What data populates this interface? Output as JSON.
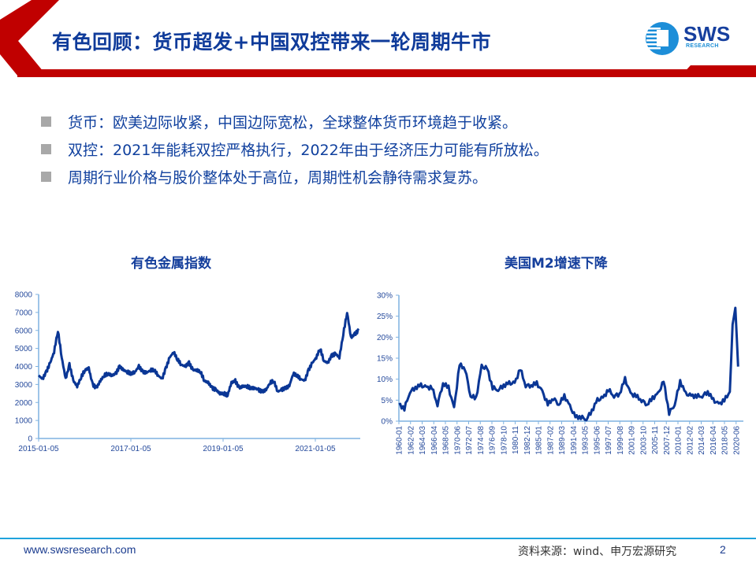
{
  "header": {
    "title": "有色回顾：货币超发+中国双控带来一轮周期牛市",
    "logo_text": "SWS",
    "logo_subtext": "RESEARCH",
    "accent_color": "#c00000",
    "title_color": "#0f3b9a"
  },
  "bullets": [
    {
      "text": "货币：欧美边际收紧，中国边际宽松，全球整体货币环境趋于收紧。"
    },
    {
      "text": "双控：2021年能耗双控严格执行，2022年由于经济压力可能有所放松。"
    },
    {
      "text": "周期行业价格与股价整体处于高位，周期性机会静待需求复苏。"
    }
  ],
  "charts": {
    "left_title": "有色金属指数",
    "right_title": "美国M2增速下降"
  },
  "chart_data": [
    {
      "type": "line",
      "title": "有色金属指数",
      "xlabel": "",
      "ylabel": "",
      "ylim": [
        0,
        8000
      ],
      "yticks": [
        "0",
        "1000",
        "2000",
        "3000",
        "4000",
        "5000",
        "6000",
        "7000",
        "8000"
      ],
      "xticks": [
        "2015-01-05",
        "2017-01-05",
        "2019-01-05",
        "2021-01-05"
      ],
      "grid": false,
      "series": [
        {
          "name": "有色金属指数",
          "color": "#0a3695",
          "x": [
            "2015-01",
            "2015-02",
            "2015-03",
            "2015-04",
            "2015-05",
            "2015-06",
            "2015-07",
            "2015-08",
            "2015-09",
            "2015-10",
            "2015-11",
            "2015-12",
            "2016-01",
            "2016-02",
            "2016-03",
            "2016-04",
            "2016-05",
            "2016-06",
            "2016-07",
            "2016-08",
            "2016-09",
            "2016-10",
            "2016-11",
            "2016-12",
            "2017-01",
            "2017-02",
            "2017-03",
            "2017-04",
            "2017-05",
            "2017-06",
            "2017-07",
            "2017-08",
            "2017-09",
            "2017-10",
            "2017-11",
            "2017-12",
            "2018-01",
            "2018-02",
            "2018-03",
            "2018-04",
            "2018-05",
            "2018-06",
            "2018-07",
            "2018-08",
            "2018-09",
            "2018-10",
            "2018-11",
            "2018-12",
            "2019-01",
            "2019-02",
            "2019-03",
            "2019-04",
            "2019-05",
            "2019-06",
            "2019-07",
            "2019-08",
            "2019-09",
            "2019-10",
            "2019-11",
            "2019-12",
            "2020-01",
            "2020-02",
            "2020-03",
            "2020-04",
            "2020-05",
            "2020-06",
            "2020-07",
            "2020-08",
            "2020-09",
            "2020-10",
            "2020-11",
            "2020-12",
            "2021-01",
            "2021-02",
            "2021-03",
            "2021-04",
            "2021-05",
            "2021-06",
            "2021-07",
            "2021-08",
            "2021-09",
            "2021-10",
            "2021-11",
            "2021-12"
          ],
          "values": [
            3500,
            3300,
            3700,
            4200,
            4800,
            6000,
            4500,
            3300,
            4100,
            3200,
            2900,
            3400,
            3800,
            3900,
            3000,
            2800,
            3200,
            3500,
            3600,
            3500,
            3600,
            4000,
            3800,
            3700,
            3600,
            3700,
            4000,
            3700,
            3650,
            3800,
            3800,
            3500,
            3300,
            3900,
            4500,
            4800,
            4400,
            4100,
            4000,
            4200,
            3800,
            3800,
            3700,
            3200,
            3100,
            2800,
            2700,
            2500,
            2500,
            2400,
            3100,
            3200,
            2800,
            2900,
            2900,
            2800,
            2800,
            2700,
            2600,
            2700,
            3100,
            3200,
            2600,
            2700,
            2800,
            2900,
            3600,
            3500,
            3300,
            3200,
            3800,
            4200,
            4500,
            5000,
            4300,
            4200,
            4600,
            4700,
            4500,
            5800,
            7000,
            5600,
            5800,
            6000
          ]
        }
      ]
    },
    {
      "type": "line",
      "title": "美国M2增速下降",
      "xlabel": "",
      "ylabel": "",
      "ylim": [
        0,
        30
      ],
      "yticks": [
        "0%",
        "5%",
        "10%",
        "15%",
        "20%",
        "25%",
        "30%"
      ],
      "xticks": [
        "1960-01",
        "1962-02",
        "1964-03",
        "1966-04",
        "1968-05",
        "1970-06",
        "1972-07",
        "1974-08",
        "1976-09",
        "1978-10",
        "1980-11",
        "1982-12",
        "1985-01",
        "1987-02",
        "1989-03",
        "1991-04",
        "1993-05",
        "1995-06",
        "1997-07",
        "1999-08",
        "2001-09",
        "2003-10",
        "2005-11",
        "2007-12",
        "2010-01",
        "2012-02",
        "2014-03",
        "2016-04",
        "2018-05",
        "2020-06"
      ],
      "grid": false,
      "series": [
        {
          "name": "美国M2同比增速",
          "color": "#0a3695",
          "x": [
            1960,
            1961,
            1962,
            1963,
            1964,
            1965,
            1966,
            1967,
            1968,
            1969,
            1970,
            1971,
            1972,
            1973,
            1974,
            1975,
            1976,
            1977,
            1978,
            1979,
            1980,
            1981,
            1982,
            1983,
            1984,
            1985,
            1986,
            1987,
            1988,
            1989,
            1990,
            1991,
            1992,
            1993,
            1994,
            1995,
            1996,
            1997,
            1998,
            1999,
            2000,
            2001,
            2002,
            2003,
            2004,
            2005,
            2006,
            2007,
            2008,
            2009,
            2010,
            2011,
            2012,
            2013,
            2014,
            2015,
            2016,
            2017,
            2018,
            2019,
            2020,
            2020.5,
            2021,
            2021.5
          ],
          "values": [
            4,
            3,
            7,
            8,
            8.5,
            8,
            8,
            4,
            9,
            8,
            3,
            13.5,
            12.5,
            6,
            5.5,
            13,
            12.5,
            8,
            7.5,
            8.5,
            9,
            9,
            12.5,
            8.5,
            8.5,
            9,
            7,
            4,
            5.5,
            4,
            6,
            3.5,
            1,
            1,
            0.5,
            2.5,
            5,
            5.5,
            7.5,
            6,
            6.5,
            10,
            6.5,
            6,
            5,
            4,
            5.5,
            6.5,
            9.5,
            2,
            4,
            9.5,
            6.5,
            6,
            6,
            6,
            7,
            5,
            4,
            5,
            7,
            23,
            27,
            13
          ]
        }
      ]
    }
  ],
  "footer": {
    "url": "www.swsresearch.com",
    "source": "资料来源：wind、申万宏源研究",
    "page": "2",
    "line_color": "#1fa3dc"
  }
}
